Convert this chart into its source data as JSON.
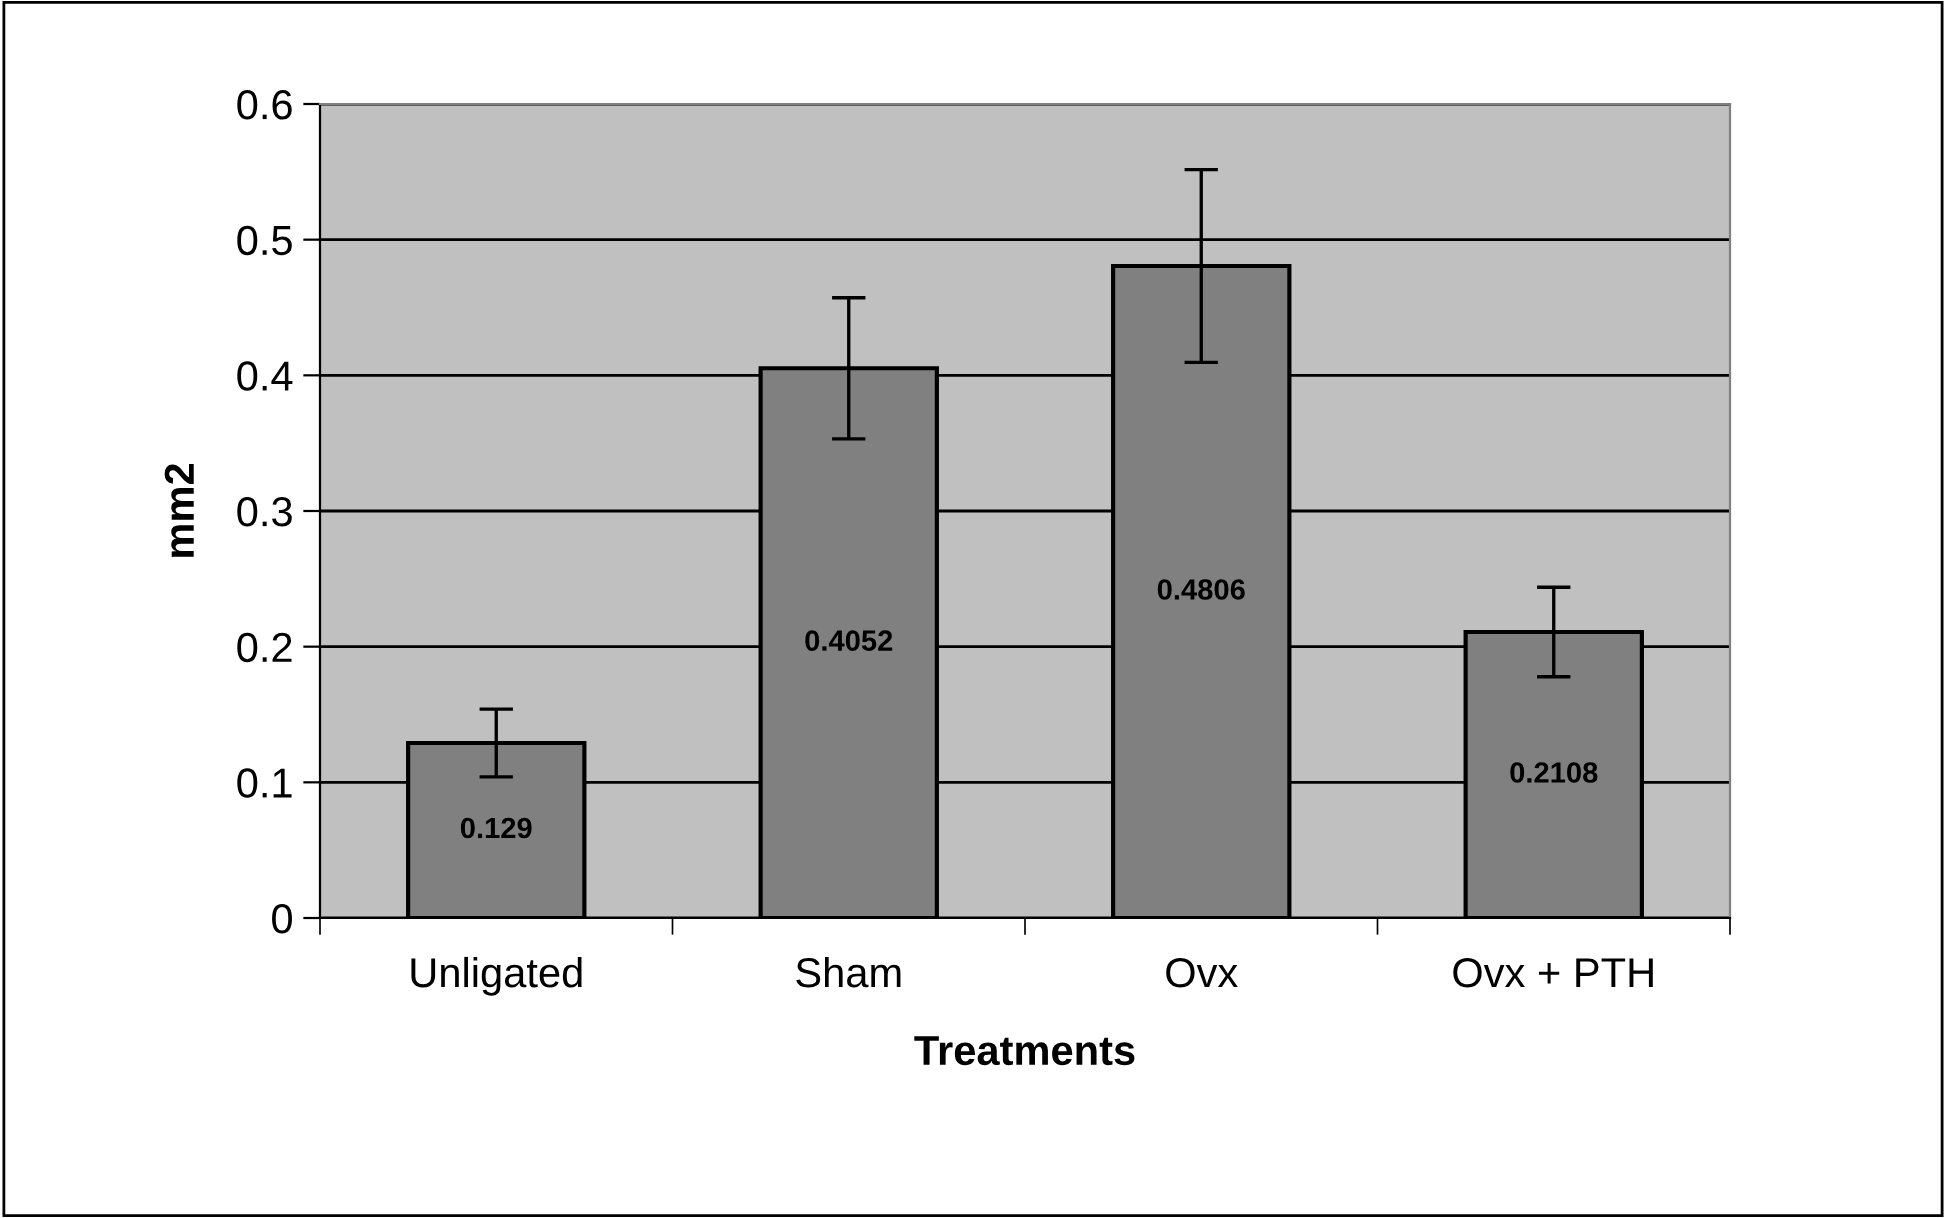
{
  "chart_data": {
    "type": "bar",
    "xlabel": "Treatments",
    "ylabel": "mm2",
    "categories": [
      "Unligated",
      "Sham",
      "Ovx",
      "Ovx + PTH"
    ],
    "values": [
      0.129,
      0.4052,
      0.4806,
      0.2108
    ],
    "errors": [
      0.025,
      0.052,
      0.071,
      0.033
    ],
    "color": "#808080",
    "data_labels": true,
    "ylim": [
      0,
      0.6
    ],
    "yticks": [
      0,
      0.1,
      0.2,
      0.3,
      0.4,
      0.5,
      0.6
    ],
    "grid": "y",
    "legend": false
  }
}
